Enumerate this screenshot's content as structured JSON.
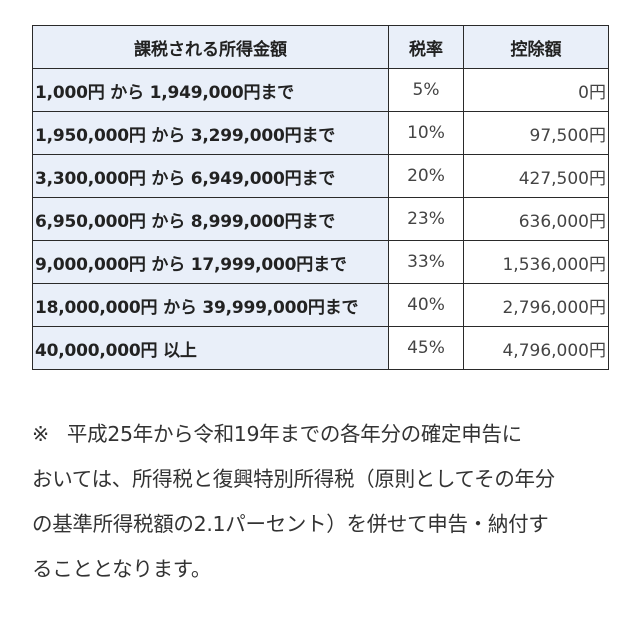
{
  "table": {
    "headers": [
      "課税される所得金額",
      "税率",
      "控除額"
    ],
    "rows": [
      {
        "range": "1,000円 から 1,949,000円まで",
        "rate": "5%",
        "deduction": "0円"
      },
      {
        "range": "1,950,000円 から 3,299,000円まで",
        "rate": "10%",
        "deduction": "97,500円"
      },
      {
        "range": "3,300,000円 から 6,949,000円まで",
        "rate": "20%",
        "deduction": "427,500円"
      },
      {
        "range": "6,950,000円 から 8,999,000円まで",
        "rate": "23%",
        "deduction": "636,000円"
      },
      {
        "range": "9,000,000円 から 17,999,000円まで",
        "rate": "33%",
        "deduction": "1,536,000円"
      },
      {
        "range": "18,000,000円 から 39,999,000円まで",
        "rate": "40%",
        "deduction": "2,796,000円"
      },
      {
        "range": "40,000,000円 以上",
        "rate": "45%",
        "deduction": "4,796,000円"
      }
    ]
  },
  "note": {
    "mark": "※",
    "lines": [
      "平成25年から令和19年までの各年分の確定申告に",
      "おいては、所得税と復興特別所得税（原則としてその年分",
      "の基準所得税額の2.1パーセント）を併せて申告・納付す",
      "ることとなります。"
    ]
  },
  "colors": {
    "header_bg": "#e9eff9",
    "border": "#2a2a2a"
  }
}
